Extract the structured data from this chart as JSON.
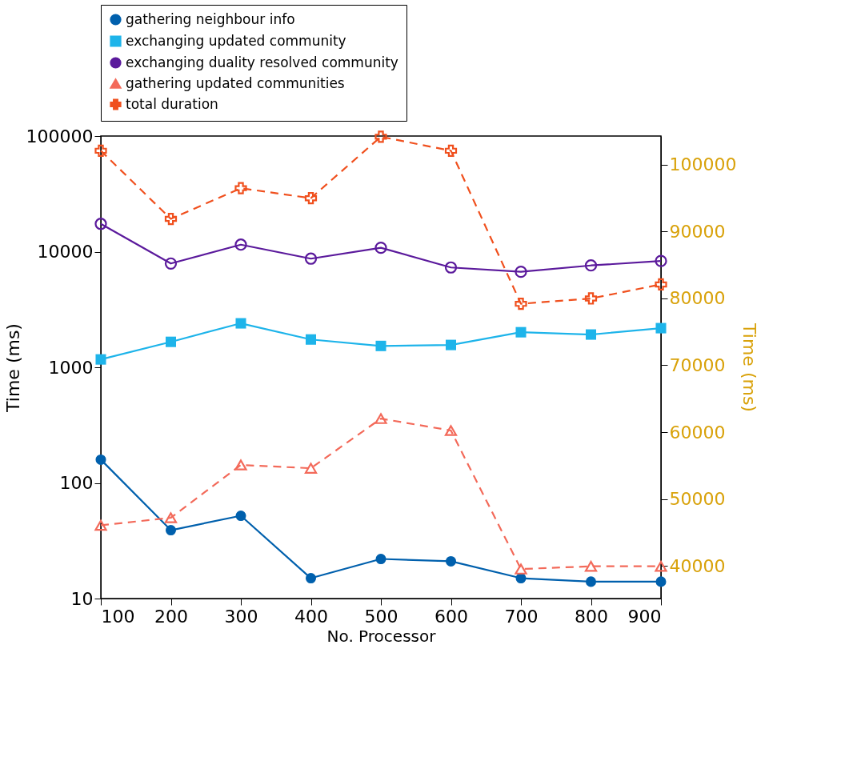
{
  "chart_data": {
    "type": "line",
    "x": [
      100,
      200,
      300,
      400,
      500,
      600,
      700,
      800,
      900
    ],
    "xlabel": "No. Processor",
    "ylabel": "Time (ms)",
    "y2label": "Time (ms)",
    "xlim": [
      100,
      900
    ],
    "xticks": [
      100,
      200,
      300,
      400,
      500,
      600,
      700,
      800,
      900
    ],
    "ylim": [
      10,
      100000
    ],
    "yticks": [
      10,
      100,
      1000,
      10000,
      100000
    ],
    "log": "y",
    "y2lim": [
      35100,
      104300
    ],
    "y2ticks": [
      40000,
      50000,
      60000,
      70000,
      80000,
      90000,
      100000
    ],
    "legend": "top",
    "grid": false,
    "series": [
      {
        "name": "gathering neighbour info",
        "color": "#0060ad",
        "marker": "circle",
        "line_style": "solid",
        "values": [
          159,
          39,
          52,
          15,
          22,
          21,
          15,
          14,
          14
        ]
      },
      {
        "name": "exchanging updated community",
        "color": "#1eb4ea",
        "marker": "square",
        "line_style": "solid",
        "values": [
          1170,
          1660,
          2400,
          1740,
          1530,
          1560,
          2010,
          1920,
          2180
        ]
      },
      {
        "name": "exchanging duality resolved community",
        "color": "#5b1a9c",
        "marker": "circle",
        "line_style": "solid",
        "values": [
          17400,
          7900,
          11500,
          8700,
          10800,
          7300,
          6700,
          7600,
          8300
        ]
      },
      {
        "name": "gathering updated communities",
        "color": "#f36a5a",
        "marker": "triangle",
        "line_style": "dashed",
        "values": [
          43,
          50,
          143,
          134,
          360,
          284,
          18,
          19,
          19
        ]
      },
      {
        "name": "total duration",
        "color": "#f0501e",
        "marker": "cross",
        "line_style": "dashed",
        "axis": "y2",
        "values": [
          102100,
          91900,
          96500,
          95000,
          104200,
          102100,
          79200,
          80000,
          82100
        ]
      }
    ]
  }
}
